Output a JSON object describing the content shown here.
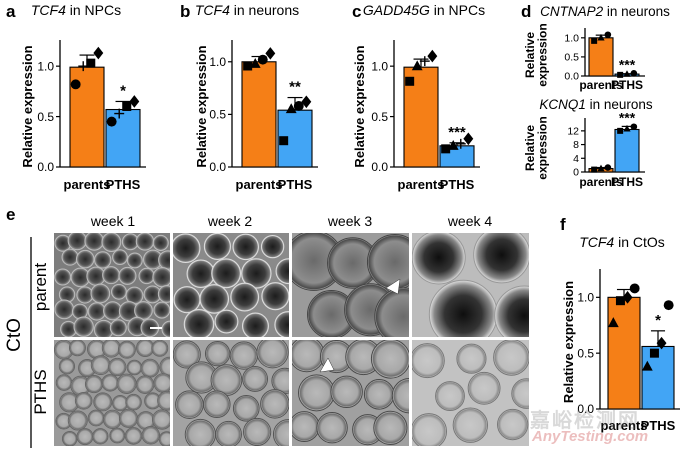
{
  "figure": {
    "week_labels": [
      "week 1",
      "week 2",
      "week 3",
      "week 4"
    ],
    "row_labels": [
      "parent",
      "PTHS"
    ],
    "group_label": "CtO"
  },
  "chart_data": [
    {
      "panel": "a",
      "type": "bar",
      "title_gene": "TCF4",
      "title_rest": " in NPCs",
      "categories": [
        "parents",
        "PTHS"
      ],
      "values": [
        0.99,
        0.57
      ],
      "errors": [
        0.12,
        0.08
      ],
      "colors": [
        "#f57f17",
        "#42a5f5"
      ],
      "points": [
        [
          0.82,
          1.0,
          1.03,
          1.13
        ],
        [
          0.45,
          0.53,
          0.6,
          0.65
        ]
      ],
      "markers": [
        "circle",
        "plus",
        "square",
        "diamond"
      ],
      "ylabel": "Relative expression",
      "ylim": [
        0,
        1.2
      ],
      "yticks": [
        "0.0",
        "0.5",
        "1.0"
      ],
      "significance": "*"
    },
    {
      "panel": "b",
      "type": "bar",
      "title_gene": "TCF4",
      "title_rest": " in neurons",
      "categories": [
        "parents",
        "PTHS"
      ],
      "values": [
        1.0,
        0.54
      ],
      "errors": [
        0.05,
        0.12
      ],
      "colors": [
        "#f57f17",
        "#42a5f5"
      ],
      "points": [
        [
          0.96,
          0.98,
          1.02,
          1.08
        ],
        [
          0.25,
          0.55,
          0.58,
          0.62
        ]
      ],
      "markers": [
        "square",
        "triangle",
        "circle",
        "diamond"
      ],
      "ylabel": "Relative expression",
      "ylim": [
        0,
        1.15
      ],
      "yticks": [
        "0.0",
        "0.5",
        "1.0"
      ],
      "significance": "**"
    },
    {
      "panel": "c",
      "type": "bar",
      "title_gene": "GADD45G",
      "title_rest": " in NPCs",
      "categories": [
        "parents",
        "PTHS"
      ],
      "values": [
        0.99,
        0.21
      ],
      "errors": [
        0.08,
        0.03
      ],
      "colors": [
        "#f57f17",
        "#42a5f5"
      ],
      "points": [
        [
          0.85,
          1.0,
          1.05,
          1.1
        ],
        [
          0.18,
          0.21,
          0.23,
          0.28
        ]
      ],
      "markers": [
        "square",
        "triangle",
        "plus",
        "diamond"
      ],
      "ylabel": "Relative expression",
      "ylim": [
        0,
        1.2
      ],
      "yticks": [
        "0.0",
        "0.5",
        "1.0"
      ],
      "significance": "***"
    },
    {
      "panel": "d-top",
      "type": "bar",
      "title_gene": "CNTNAP2",
      "title_rest": " in neurons",
      "categories": [
        "parents",
        "PTHS"
      ],
      "values": [
        1.0,
        0.05
      ],
      "errors": [
        0.07,
        0.01
      ],
      "colors": [
        "#f57f17",
        "#42a5f5"
      ],
      "points": [
        [
          0.92,
          1.0,
          1.08
        ],
        [
          0.03,
          0.05,
          0.07
        ]
      ],
      "markers": [
        "square",
        "triangle",
        "circle",
        "diamond"
      ],
      "ylabel": "Relative expression",
      "ylim": [
        0,
        1.1
      ],
      "yticks": [
        "0.0",
        "0.5",
        "1.0"
      ],
      "significance": "***"
    },
    {
      "panel": "d-bottom",
      "type": "bar",
      "title_gene": "KCNQ1",
      "title_rest": " in neurons",
      "categories": [
        "parents",
        "PTHS"
      ],
      "values": [
        1.0,
        12.4
      ],
      "errors": [
        0.3,
        0.9
      ],
      "colors": [
        "#f57f17",
        "#42a5f5"
      ],
      "points": [
        [
          0.7,
          1.0,
          1.3
        ],
        [
          12.0,
          12.6,
          13.2
        ]
      ],
      "markers": [
        "square",
        "triangle",
        "circle",
        "diamond"
      ],
      "ylabel": "Relative expression",
      "ylim": [
        0,
        14
      ],
      "yticks": [
        "0",
        "4",
        "8",
        "12"
      ],
      "significance": "***"
    },
    {
      "panel": "f",
      "type": "bar",
      "title_gene": "TCF4",
      "title_rest": " in CtOs",
      "categories": [
        "parents",
        "PTHS"
      ],
      "values": [
        1.0,
        0.56
      ],
      "errors": [
        0.07,
        0.14
      ],
      "colors": [
        "#f57f17",
        "#42a5f5"
      ],
      "points": [
        [
          0.77,
          0.97,
          1.0,
          1.08
        ],
        [
          0.38,
          0.5,
          0.59,
          0.93
        ]
      ],
      "markers": [
        "triangle",
        "square",
        "diamond",
        "circle"
      ],
      "ylabel": "Relative expression",
      "ylim": [
        0,
        1.2
      ],
      "yticks": [
        "0.0",
        "0.5",
        "1.0"
      ],
      "significance": "*"
    }
  ],
  "watermark": {
    "line1": "嘉峪检测网",
    "line2": "AnyTesting.com"
  }
}
